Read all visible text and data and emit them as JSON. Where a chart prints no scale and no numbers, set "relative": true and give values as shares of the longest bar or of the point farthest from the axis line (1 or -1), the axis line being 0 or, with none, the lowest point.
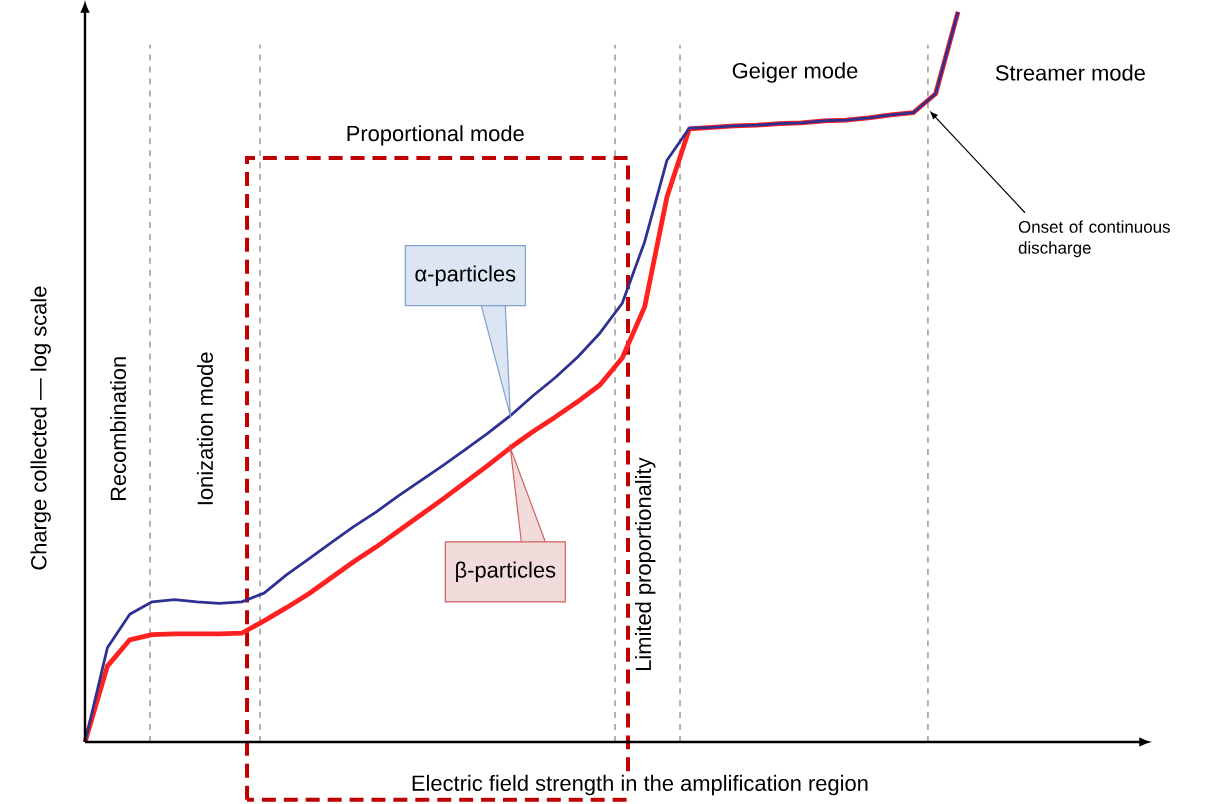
{
  "chart_data": {
    "type": "line",
    "relative": true,
    "xlabel": "Electric field strength in the amplification region",
    "ylabel": "Charge collected — log scale",
    "categories": [
      null,
      null,
      null,
      null,
      null,
      null,
      null,
      null,
      null,
      null,
      null,
      null,
      null,
      null,
      null,
      null,
      null,
      null,
      null,
      null,
      null,
      null,
      null,
      null,
      null,
      null,
      null,
      null,
      null,
      null,
      null,
      null,
      null,
      null,
      null,
      null,
      null,
      null,
      null,
      null
    ],
    "series": [
      {
        "name": "α-particles",
        "color": "#2e3192",
        "values": [
          0,
          0.129,
          0.175,
          0.192,
          0.195,
          0.192,
          0.19,
          0.192,
          0.204,
          0.229,
          0.251,
          0.273,
          0.295,
          0.315,
          0.337,
          0.358,
          0.379,
          0.401,
          0.423,
          0.447,
          0.474,
          0.499,
          0.527,
          0.56,
          0.601,
          0.685,
          0.797,
          0.841,
          0.842,
          0.844,
          0.845,
          0.847,
          0.848,
          0.851,
          0.852,
          0.855,
          0.859,
          0.862,
          0.888,
          1.0
        ]
      },
      {
        "name": "β-particles",
        "color": "#ff2020",
        "values": [
          0,
          0.104,
          0.14,
          0.147,
          0.148,
          0.148,
          0.148,
          0.149,
          0.166,
          0.184,
          0.203,
          0.225,
          0.247,
          0.267,
          0.289,
          0.311,
          0.333,
          0.356,
          0.379,
          0.403,
          0.425,
          0.445,
          0.466,
          0.489,
          0.526,
          0.596,
          0.747,
          0.84,
          0.842,
          0.844,
          0.845,
          0.847,
          0.848,
          0.851,
          0.852,
          0.855,
          0.859,
          0.862,
          0.888,
          1.0
        ]
      }
    ],
    "annotations": [
      "Recombination",
      "Ionization mode",
      "Proportional mode",
      "Limited proportionality",
      "Geiger mode",
      "Streamer mode",
      "Onset of continuous discharge"
    ]
  }
}
